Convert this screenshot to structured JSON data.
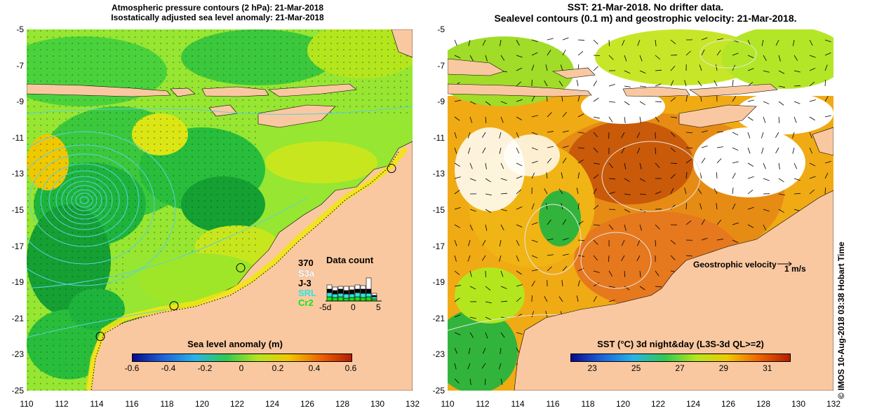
{
  "left_panel": {
    "title_line1": "Atmospheric pressure contours (2 hPa): 21-Mar-2018",
    "title_line2": "Isostatically adjusted sea level anomaly: 21-Mar-2018",
    "colorbar": {
      "title": "Sea level anomaly (m)",
      "ticks": [
        "-0.6",
        "-0.4",
        "-0.2",
        "0",
        "0.2",
        "0.4",
        "0.6"
      ],
      "range": [
        -0.6,
        0.6
      ],
      "colors": [
        "#0a0a8c",
        "#1e64dc",
        "#28b4e6",
        "#32c850",
        "#b4e61e",
        "#f0c800",
        "#f06400",
        "#b41e00"
      ]
    },
    "data_count": {
      "title": "Data count",
      "max_label": "370",
      "satellites": [
        {
          "name": "S3a",
          "color": "#ffffff"
        },
        {
          "name": "J-3",
          "color": "#000000"
        },
        {
          "name": "SRL",
          "color": "#28e6e6"
        },
        {
          "name": "Cr2",
          "color": "#14e614"
        }
      ],
      "x_ticks": [
        "-5d",
        "0",
        "5"
      ]
    },
    "tide_gauges": [
      {
        "lon": 130.8,
        "lat": -12.7
      },
      {
        "lon": 122.2,
        "lat": -18.2
      },
      {
        "lon": 118.4,
        "lat": -20.3
      },
      {
        "lon": 114.2,
        "lat": -22.0
      }
    ]
  },
  "right_panel": {
    "title_line1": "SST: 21-Mar-2018. No drifter data.",
    "title_line2": "Sealevel contours (0.1 m) and geostrophic velocity: 21-Mar-2018.",
    "colorbar": {
      "title": "SST (°C) 3d night&day (L3S-3d QL>=2)",
      "ticks": [
        "23",
        "25",
        "27",
        "29",
        "31"
      ],
      "range": [
        22,
        32
      ],
      "colors": [
        "#0a0a8c",
        "#1e64dc",
        "#28b4e6",
        "#32c850",
        "#b4e61e",
        "#f0c800",
        "#f06400",
        "#b41e00"
      ]
    },
    "velocity_legend": {
      "label": "Geostrophic velocity",
      "scale": "1 m/s"
    }
  },
  "map": {
    "lon_range": [
      110,
      132
    ],
    "lat_range": [
      -25,
      -5
    ],
    "x_ticks": [
      "110",
      "112",
      "114",
      "116",
      "118",
      "120",
      "122",
      "124",
      "126",
      "128",
      "130",
      "132"
    ],
    "y_ticks": [
      "-5",
      "-7",
      "-9",
      "-11",
      "-13",
      "-15",
      "-17",
      "-19",
      "-21",
      "-23",
      "-25"
    ],
    "land_color": "#fac8a0"
  },
  "credit": "© IMOS 10-Aug-2018 03:38 Hobart Time"
}
